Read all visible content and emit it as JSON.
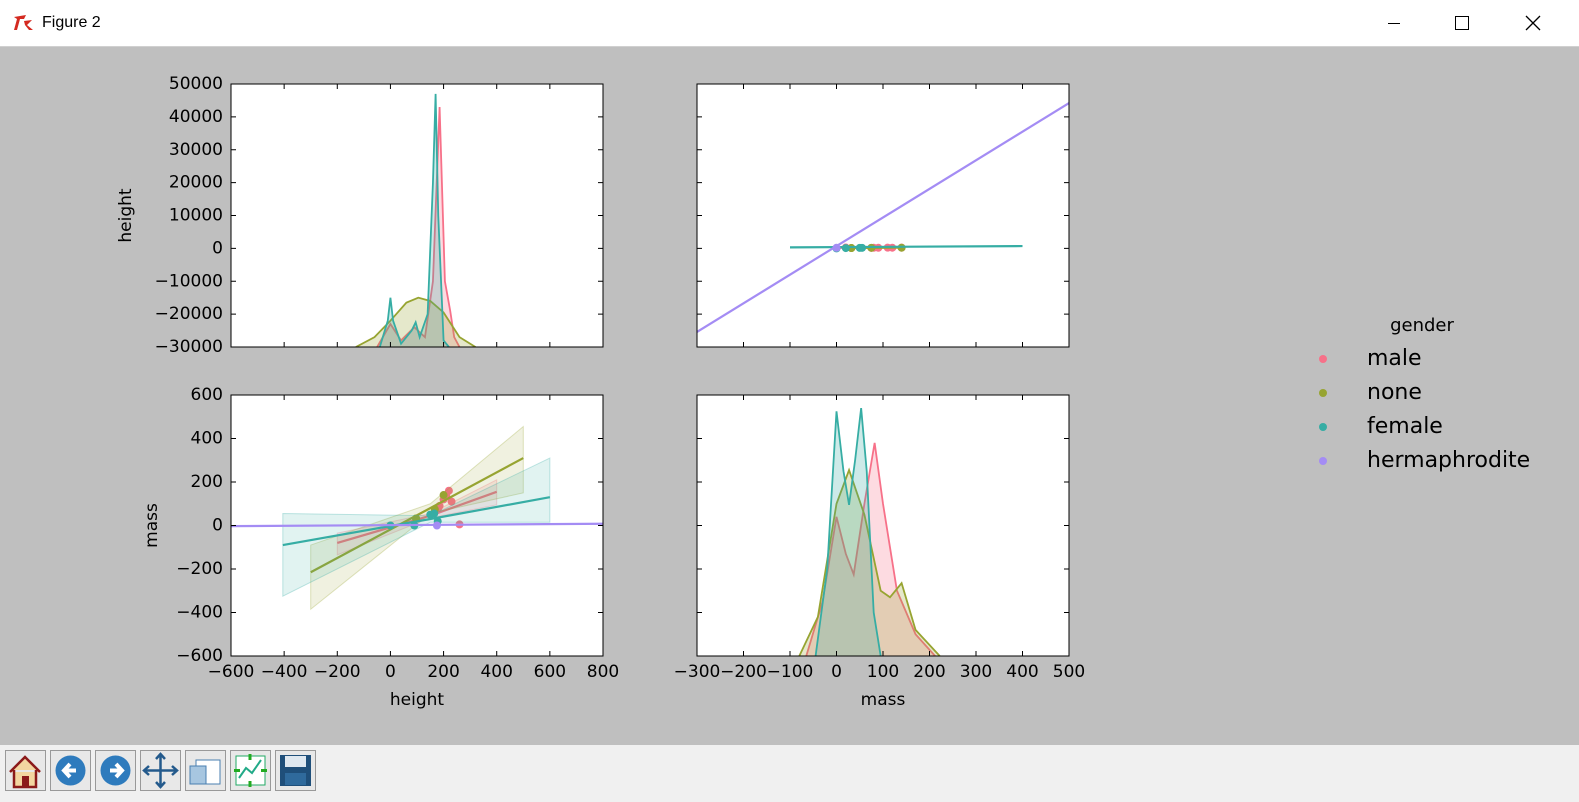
{
  "window": {
    "title": "Figure 2"
  },
  "chart_data": [
    {
      "type": "kde",
      "xlim": [
        -600,
        800
      ],
      "ylim": [
        -30000,
        50000
      ],
      "xticks": [
        -600,
        -400,
        -200,
        0,
        200,
        400,
        600,
        800
      ],
      "show_xtick_labels": false,
      "yticks": [
        {
          "value": -30000,
          "label": "−30000"
        },
        {
          "value": -20000,
          "label": "−20000"
        },
        {
          "value": -10000,
          "label": "−10000"
        },
        0,
        10000,
        20000,
        30000,
        40000,
        50000
      ],
      "show_ytick_labels": true,
      "ylabel": "height",
      "series": [
        {
          "name": "male",
          "color": "#f77189",
          "x": [
            -50,
            0,
            40,
            90,
            130,
            160,
            185,
            205,
            225,
            240,
            260
          ],
          "values": [
            -30000,
            -23000,
            -28000,
            -24000,
            -27000,
            -10000,
            43000,
            -10000,
            -19000,
            -27000,
            -30000
          ]
        },
        {
          "name": "none",
          "color": "#97a431",
          "x": [
            -130,
            -60,
            0,
            60,
            105,
            150,
            200,
            260,
            320
          ],
          "values": [
            -30000,
            -27000,
            -22000,
            -16500,
            -15000,
            -16000,
            -19500,
            -27000,
            -30000
          ]
        },
        {
          "name": "female",
          "color": "#36ada4",
          "x": [
            -40,
            -10,
            0,
            10,
            40,
            80,
            95,
            110,
            140,
            160,
            170,
            180,
            200,
            220
          ],
          "values": [
            -30000,
            -22000,
            -15000,
            -22000,
            -29000,
            -25000,
            -22500,
            -27000,
            -20000,
            20000,
            47000,
            10000,
            -28000,
            -30000
          ]
        }
      ]
    },
    {
      "type": "regplot",
      "xlim": [
        -300,
        500
      ],
      "ylim": [
        -30000,
        50000
      ],
      "xticks": [
        -300,
        -200,
        -100,
        0,
        100,
        200,
        300,
        400,
        500
      ],
      "show_xtick_labels": false,
      "yticks": [
        -30000,
        -20000,
        -10000,
        0,
        10000,
        20000,
        30000,
        40000,
        50000
      ],
      "show_ytick_labels": false,
      "series": [
        {
          "name": "male",
          "color": "#f77189",
          "x": [
            80,
            120,
            140,
            90,
            110,
            75,
            20
          ],
          "values": [
            180,
            200,
            210,
            185,
            230,
            170,
            260
          ],
          "fit_x": [
            0,
            140
          ],
          "fit_values": [
            200,
            250
          ]
        },
        {
          "name": "none",
          "color": "#97a431",
          "x": [
            32,
            32,
            75,
            140
          ],
          "values": [
            96,
            97,
            167,
            200
          ],
          "fit_x": [
            20,
            140
          ],
          "fit_values": [
            100,
            250
          ]
        },
        {
          "name": "female",
          "color": "#36ada4",
          "x": [
            0,
            20,
            50,
            55
          ],
          "values": [
            0,
            90,
            150,
            165
          ],
          "fit_x": [
            -100,
            400
          ],
          "fit_values": [
            300,
            700
          ]
        },
        {
          "name": "hermaphrodite",
          "color": "#a48cf4",
          "x": [
            0
          ],
          "values": [
            175
          ],
          "fit_x": [
            -300,
            500
          ],
          "fit_values": [
            -25400,
            44200
          ]
        }
      ]
    },
    {
      "type": "regplot",
      "xlim": [
        -600,
        800
      ],
      "ylim": [
        -600,
        600
      ],
      "xticks": [
        {
          "value": -600,
          "label": "−600"
        },
        {
          "value": -400,
          "label": "−400"
        },
        {
          "value": -200,
          "label": "−200"
        },
        0,
        200,
        400,
        600,
        800
      ],
      "show_xtick_labels": true,
      "yticks": [
        {
          "value": -600,
          "label": "−600"
        },
        {
          "value": -400,
          "label": "−400"
        },
        {
          "value": -200,
          "label": "−200"
        },
        0,
        200,
        400,
        600
      ],
      "show_ytick_labels": true,
      "xlabel": "height",
      "ylabel": "mass",
      "legend_title": "gender",
      "series": [
        {
          "name": "male",
          "color": "#f77189",
          "x": [
            180,
            200,
            210,
            220,
            185,
            230,
            170,
            260
          ],
          "values": [
            80,
            120,
            140,
            160,
            90,
            110,
            75,
            5
          ],
          "fit_x": [
            -200,
            150,
            400
          ],
          "fit_values": [
            -80,
            45,
            155
          ],
          "band_lower": [
            -135,
            35,
            95
          ],
          "band_upper": [
            -35,
            55,
            210
          ]
        },
        {
          "name": "none",
          "color": "#97a431",
          "x": [
            96,
            97,
            167,
            200
          ],
          "values": [
            32,
            32,
            75,
            140
          ],
          "fit_x": [
            -300,
            150,
            500
          ],
          "fit_values": [
            -215,
            80,
            310
          ],
          "band_lower": [
            -385,
            55,
            150
          ],
          "band_upper": [
            -90,
            100,
            455
          ]
        },
        {
          "name": "female",
          "color": "#36ada4",
          "x": [
            0,
            90,
            150,
            165,
            178
          ],
          "values": [
            0,
            0,
            50,
            55,
            20
          ],
          "fit_x": [
            -405,
            150,
            600
          ],
          "fit_values": [
            -90,
            30,
            130
          ],
          "band_lower": [
            -325,
            15,
            15
          ],
          "band_upper": [
            55,
            45,
            310
          ]
        },
        {
          "name": "hermaphrodite",
          "color": "#a48cf4",
          "x": [
            175
          ],
          "values": [
            0
          ],
          "fit_x": [
            -600,
            800
          ],
          "fit_values": [
            -3,
            8
          ]
        }
      ]
    },
    {
      "type": "kde",
      "xlim": [
        -300,
        500
      ],
      "ylim": [
        -600,
        600
      ],
      "xticks": [
        {
          "value": -300,
          "label": "−300"
        },
        {
          "value": -200,
          "label": "−200"
        },
        {
          "value": -100,
          "label": "−100"
        },
        0,
        100,
        200,
        300,
        400,
        500
      ],
      "show_xtick_labels": true,
      "yticks": [
        -600,
        -400,
        -200,
        0,
        200,
        400,
        600
      ],
      "show_ytick_labels": false,
      "xlabel": "mass",
      "series": [
        {
          "name": "male",
          "color": "#f77189",
          "x": [
            -65,
            -30,
            0,
            20,
            37,
            60,
            82,
            100,
            130,
            170,
            212
          ],
          "values": [
            -600,
            -350,
            40,
            -130,
            -225,
            100,
            380,
            100,
            -300,
            -500,
            -600
          ]
        },
        {
          "name": "none",
          "color": "#97a431",
          "x": [
            -80,
            -40,
            0,
            27,
            60,
            95,
            115,
            140,
            170,
            222
          ],
          "values": [
            -600,
            -420,
            100,
            255,
            50,
            -300,
            -330,
            -265,
            -480,
            -600
          ]
        },
        {
          "name": "female",
          "color": "#36ada4",
          "x": [
            -45,
            -20,
            0,
            15,
            27,
            40,
            53,
            65,
            80,
            95
          ],
          "values": [
            -600,
            -200,
            525,
            250,
            95,
            300,
            540,
            250,
            -400,
            -600
          ]
        }
      ]
    }
  ]
}
